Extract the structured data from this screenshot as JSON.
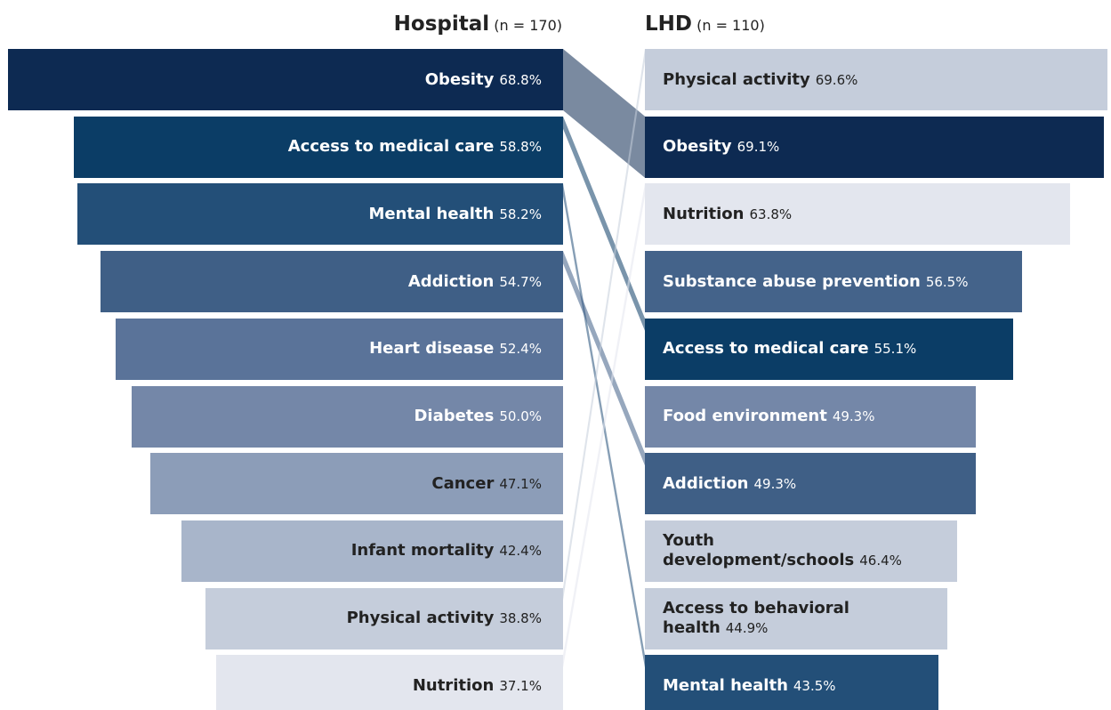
{
  "chart_data": {
    "type": "bar",
    "series": [
      {
        "name": "Hospital",
        "n_label": "(n = 170)",
        "categories": [
          "Obesity",
          "Access to medical care",
          "Mental health",
          "Addiction",
          "Heart disease",
          "Diabetes",
          "Cancer",
          "Infant mortality",
          "Physical activity",
          "Nutrition"
        ],
        "values": [
          68.8,
          58.8,
          58.2,
          54.7,
          52.4,
          50.0,
          47.1,
          42.4,
          38.8,
          37.1
        ],
        "value_labels": [
          "68.8%",
          "58.8%",
          "58.2%",
          "54.7%",
          "52.4%",
          "50.0%",
          "47.1%",
          "42.4%",
          "38.8%",
          "37.1%"
        ],
        "colors": [
          "#0d2a52",
          "#0b3d66",
          "#234f78",
          "#3f5f86",
          "#5a7399",
          "#7487a8",
          "#8c9db8",
          "#a8b5ca",
          "#c5cddb",
          "#e3e6ee"
        ]
      },
      {
        "name": "LHD",
        "n_label": "(n = 110)",
        "categories": [
          "Physical activity",
          "Obesity",
          "Nutrition",
          "Substance abuse prevention",
          "Access to medical care",
          "Food environment",
          "Addiction",
          "Youth development/schools",
          "Access to behavioral health",
          "Mental health"
        ],
        "values": [
          69.6,
          69.1,
          63.8,
          56.5,
          55.1,
          49.3,
          49.3,
          46.4,
          44.9,
          43.5
        ],
        "value_labels": [
          "69.6%",
          "69.1%",
          "63.8%",
          "56.5%",
          "55.1%",
          "49.3%",
          "49.3%",
          "46.4%",
          "44.9%",
          "43.5%"
        ],
        "colors": [
          "#c5cddb",
          "#0d2a52",
          "#e3e6ee",
          "#44638a",
          "#0b3d66",
          "#7487a8",
          "#3f5f86",
          "#c5cddb",
          "#c5cddb",
          "#234f78"
        ]
      }
    ]
  }
}
